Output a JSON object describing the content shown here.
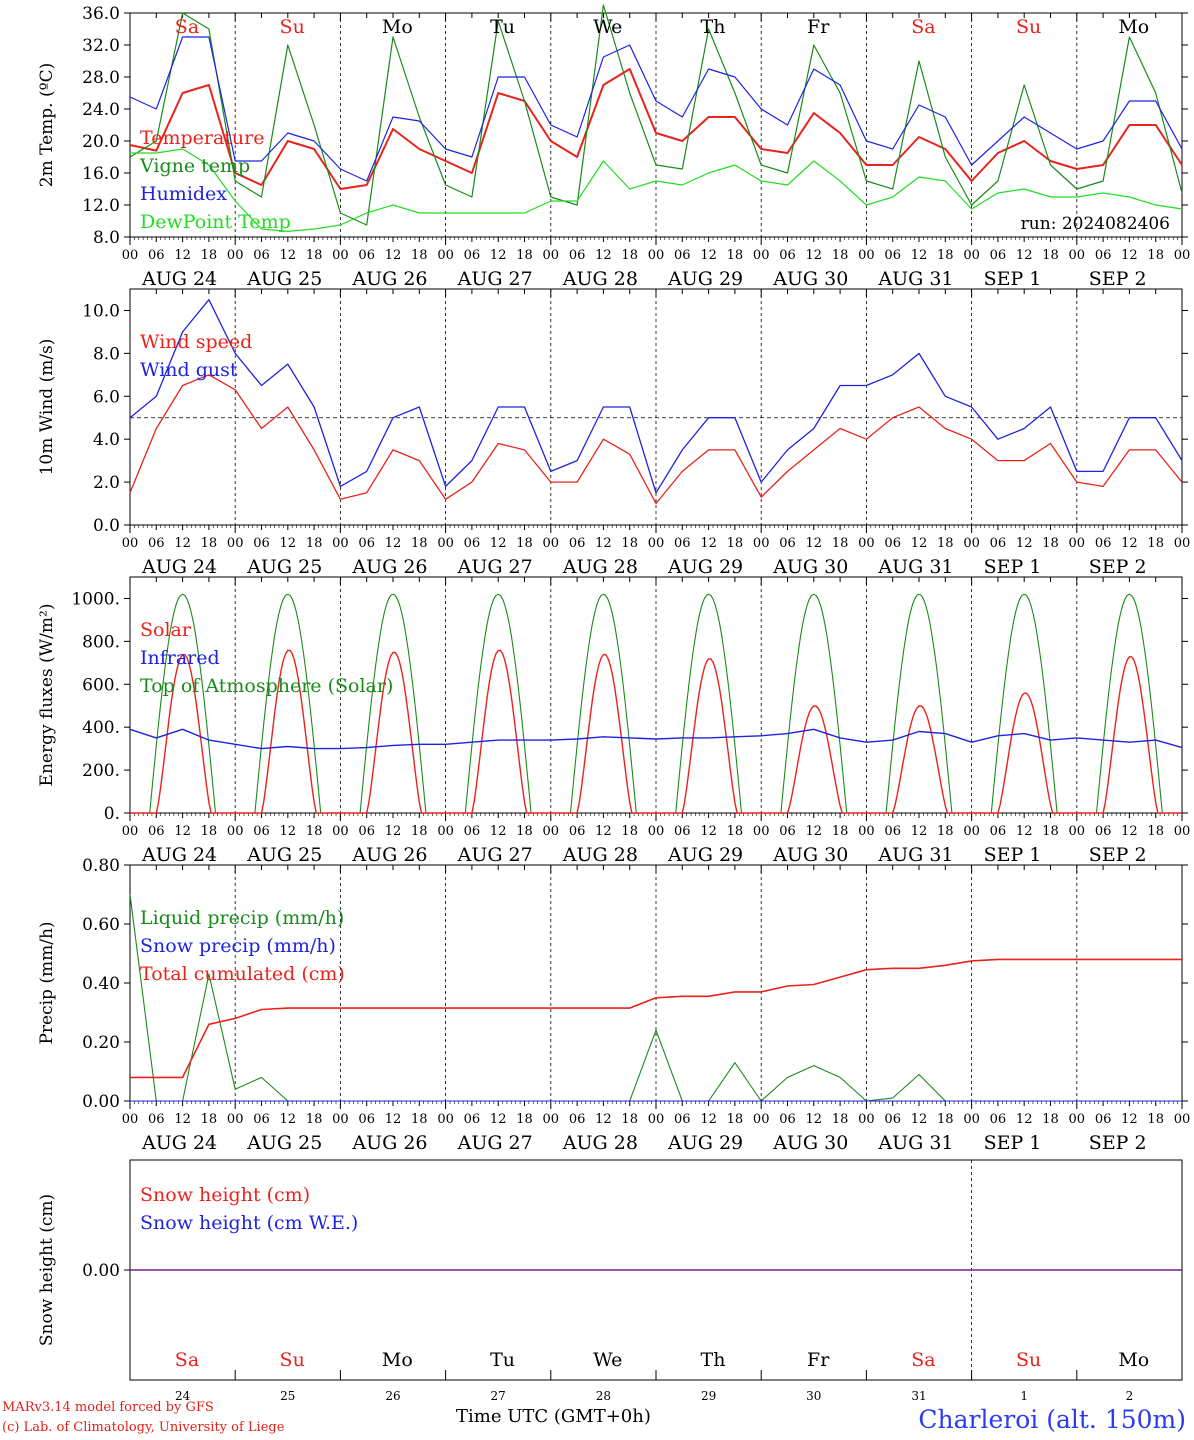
{
  "footer": {
    "credit_line1": "MARv3.14 model forced by GFS",
    "credit_line2": "(c) Lab. of Climatology, University of Liege",
    "time_axis_label": "Time UTC (GMT+0h)",
    "station": "Charleroi (alt. 150m)"
  },
  "colors": {
    "red": "#e8231c",
    "blue": "#1d23e0",
    "green": "#1a8a1a",
    "lightgreen": "#22dd22",
    "purple": "#7a1a9a"
  },
  "chart_data": [
    {
      "type": "line",
      "ylabel": "2m Temp. (ºC)",
      "ylim": [
        8,
        36
      ],
      "yticks": [
        "8.0",
        "12.0",
        "16.0",
        "20.0",
        "24.0",
        "28.0",
        "32.0",
        "36.0"
      ],
      "x_hours": [
        0,
        6,
        12,
        18,
        24,
        30,
        36,
        42,
        48,
        54,
        60,
        66,
        72,
        78,
        84,
        90,
        96,
        102,
        108,
        114,
        120,
        126,
        132,
        138,
        144,
        150,
        156,
        162,
        168,
        174,
        180,
        186,
        192,
        198,
        204,
        210,
        216,
        222,
        228,
        234,
        240
      ],
      "weekdays": [
        {
          "label": "Sa",
          "color": "red"
        },
        {
          "label": "Su",
          "color": "red"
        },
        {
          "label": "Mo",
          "color": "black"
        },
        {
          "label": "Tu",
          "color": "black"
        },
        {
          "label": "We",
          "color": "black"
        },
        {
          "label": "Th",
          "color": "black"
        },
        {
          "label": "Fr",
          "color": "black"
        },
        {
          "label": "Sa",
          "color": "red"
        },
        {
          "label": "Su",
          "color": "red"
        },
        {
          "label": "Mo",
          "color": "black"
        }
      ],
      "annotation": "run: 2024082406",
      "series": [
        {
          "name": "Temperature",
          "color": "red",
          "values": [
            19.5,
            18.8,
            26,
            27,
            16,
            14.5,
            20,
            19,
            14,
            14.5,
            21.5,
            19,
            17.5,
            16,
            26,
            25,
            20,
            18,
            27,
            29,
            21,
            20,
            23,
            23,
            19,
            18.5,
            23.5,
            21,
            17,
            17,
            20.5,
            19,
            15,
            18.5,
            20,
            17.5,
            16.5,
            17,
            22,
            22,
            17
          ]
        },
        {
          "name": "Vigne temp",
          "color": "green",
          "values": [
            18,
            20,
            36,
            34,
            15,
            13,
            32,
            22,
            11,
            9.5,
            33,
            23,
            14.5,
            13,
            35,
            25,
            13,
            12,
            37,
            26,
            17,
            16.5,
            34,
            26,
            17,
            16,
            32,
            26,
            15,
            14,
            30,
            18,
            12,
            15,
            27,
            17,
            14,
            15,
            33,
            26,
            13.5
          ]
        },
        {
          "name": "Humidex",
          "color": "blue",
          "values": [
            25.5,
            24,
            33,
            33,
            17.5,
            17.5,
            21,
            20,
            16.5,
            15,
            23,
            22.5,
            19,
            18,
            28,
            28,
            22,
            20.5,
            30.5,
            32,
            25,
            23,
            29,
            28,
            24,
            22,
            29,
            27,
            20,
            19,
            24.5,
            23,
            17,
            20,
            23,
            21,
            19,
            20,
            25,
            25,
            19
          ]
        },
        {
          "name": "DewPoint Temp",
          "color": "lightgreen",
          "values": [
            18.5,
            18.5,
            19,
            17,
            12.5,
            9,
            8.7,
            9,
            9.5,
            11,
            12,
            11,
            11,
            11,
            11,
            11,
            12.5,
            12.5,
            17.5,
            14,
            15,
            14.5,
            16,
            17,
            15,
            14.5,
            17.5,
            15,
            12,
            13,
            15.5,
            15,
            11.5,
            13.5,
            14,
            13,
            13,
            13.5,
            13,
            12,
            11.5
          ]
        }
      ]
    },
    {
      "type": "line",
      "ylabel": "10m Wind (m/s)",
      "ylim": [
        0,
        11
      ],
      "yticks": [
        "0.0",
        "2.0",
        "4.0",
        "6.0",
        "8.0",
        "10.0"
      ],
      "reference_line": 5,
      "series": [
        {
          "name": "Wind speed",
          "color": "red",
          "values": [
            1.5,
            4.5,
            6.5,
            7,
            6.3,
            4.5,
            5.5,
            3.5,
            1.2,
            1.5,
            3.5,
            3,
            1.2,
            2,
            3.8,
            3.5,
            2,
            2,
            4,
            3.3,
            1,
            2.5,
            3.5,
            3.5,
            1.3,
            2.5,
            3.5,
            4.5,
            4,
            5,
            5.5,
            4.5,
            4,
            3,
            3,
            3.8,
            2,
            1.8,
            3.5,
            3.5,
            2
          ]
        },
        {
          "name": "Wind gust",
          "color": "blue",
          "values": [
            5,
            6,
            9,
            10.5,
            8,
            6.5,
            7.5,
            5.5,
            1.8,
            2.5,
            5,
            5.5,
            1.8,
            3,
            5.5,
            5.5,
            2.5,
            3,
            5.5,
            5.5,
            1.5,
            3.5,
            5,
            5,
            2,
            3.5,
            4.5,
            6.5,
            6.5,
            7,
            8,
            6,
            5.5,
            4,
            4.5,
            5.5,
            2.5,
            2.5,
            5,
            5,
            3
          ]
        }
      ]
    },
    {
      "type": "line",
      "ylabel": "Energy fluxes (W/m²)",
      "ylim": [
        0,
        1100
      ],
      "yticks": [
        "0.",
        "200.",
        "400.",
        "600.",
        "800.",
        "1000."
      ],
      "series": [
        {
          "name": "Solar",
          "color": "red",
          "values": [
            0,
            250,
            740,
            200,
            0,
            280,
            760,
            200,
            0,
            280,
            750,
            320,
            0,
            280,
            760,
            300,
            0,
            280,
            740,
            250,
            0,
            270,
            720,
            250,
            0,
            300,
            500,
            200,
            0,
            100,
            500,
            80,
            0,
            150,
            560,
            80,
            0,
            280,
            730,
            250,
            0
          ]
        },
        {
          "name": "Infrared",
          "color": "blue",
          "values": [
            390,
            350,
            390,
            340,
            320,
            300,
            310,
            300,
            300,
            305,
            315,
            320,
            320,
            330,
            340,
            340,
            340,
            345,
            355,
            350,
            345,
            350,
            350,
            355,
            360,
            370,
            390,
            350,
            330,
            340,
            380,
            370,
            330,
            360,
            370,
            340,
            350,
            340,
            330,
            340,
            305
          ]
        },
        {
          "name": "Top of Atmosphere (Solar)",
          "color": "green",
          "daily_max": 1020
        }
      ]
    },
    {
      "type": "line",
      "ylabel": "Precip (mm/h)",
      "ylim": [
        0,
        0.8
      ],
      "yticks": [
        "0.00",
        "0.20",
        "0.40",
        "0.60",
        "0.80"
      ],
      "series": [
        {
          "name": "Liquid precip (mm/h)",
          "color": "green",
          "values": [
            0.7,
            0,
            0,
            0.43,
            0.04,
            0.08,
            0,
            0,
            0,
            0,
            0,
            0,
            0,
            0,
            0,
            0,
            0,
            0,
            0,
            0,
            0.24,
            0,
            0,
            0.13,
            0,
            0.08,
            0.12,
            0.08,
            0,
            0.01,
            0.09,
            0,
            0,
            0,
            0,
            0,
            0,
            0,
            0,
            0,
            0
          ]
        },
        {
          "name": "Snow precip (mm/h)",
          "color": "blue",
          "values": [
            0,
            0,
            0,
            0,
            0,
            0,
            0,
            0,
            0,
            0,
            0,
            0,
            0,
            0,
            0,
            0,
            0,
            0,
            0,
            0,
            0,
            0,
            0,
            0,
            0,
            0,
            0,
            0,
            0,
            0,
            0,
            0,
            0,
            0,
            0,
            0,
            0,
            0,
            0,
            0,
            0
          ]
        },
        {
          "name": "Total cumulated (cm)",
          "color": "red",
          "values": [
            0.08,
            0.08,
            0.08,
            0.26,
            0.28,
            0.31,
            0.315,
            0.315,
            0.315,
            0.315,
            0.315,
            0.315,
            0.315,
            0.315,
            0.315,
            0.315,
            0.315,
            0.315,
            0.315,
            0.315,
            0.35,
            0.355,
            0.355,
            0.37,
            0.37,
            0.39,
            0.395,
            0.42,
            0.445,
            0.45,
            0.45,
            0.46,
            0.475,
            0.48,
            0.48,
            0.48,
            0.48,
            0.48,
            0.48,
            0.48,
            0.48
          ]
        }
      ]
    },
    {
      "type": "line",
      "ylabel": "Snow height (cm)",
      "yticks": [
        "0.00"
      ],
      "bottom_day_numbers": [
        "24",
        "25",
        "26",
        "27",
        "28",
        "29",
        "30",
        "31",
        "1",
        "2"
      ],
      "series": [
        {
          "name": "Snow height (cm)",
          "color": "red",
          "values": [
            0,
            0
          ]
        },
        {
          "name": "Snow height (cm W.E.)",
          "color": "blue",
          "values": [
            0,
            0
          ]
        }
      ]
    }
  ],
  "date_labels": [
    "AUG 24",
    "AUG 25",
    "AUG 26",
    "AUG 27",
    "AUG 28",
    "AUG 29",
    "AUG 30",
    "AUG 31",
    "SEP  1",
    "SEP  2"
  ],
  "hour_labels": [
    "00",
    "06",
    "12",
    "18"
  ]
}
